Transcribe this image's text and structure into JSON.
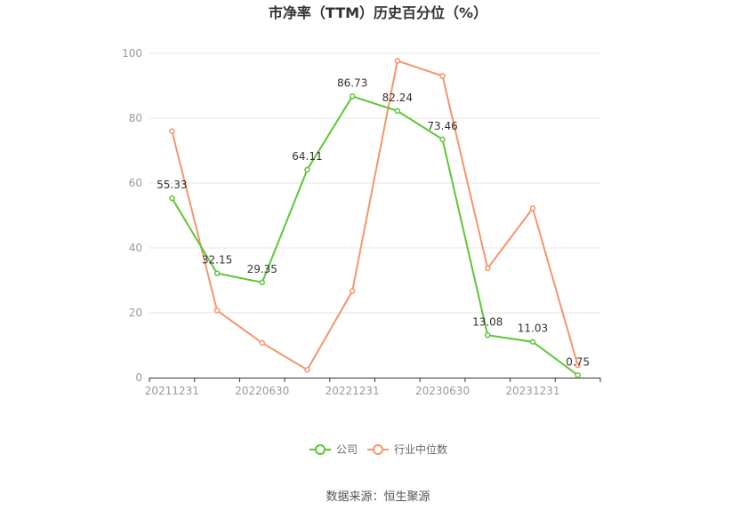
{
  "chart_data": {
    "type": "line",
    "title": "市净率（TTM）历史百分位（%）",
    "x": [
      "20211231",
      "20220331",
      "20220630",
      "20220930",
      "20221231",
      "20230331",
      "20230630",
      "20230930",
      "20231231",
      "20240331"
    ],
    "x_tick_labels": [
      "20211231",
      "20220630",
      "20221231",
      "20230630",
      "20231231"
    ],
    "y_ticks": [
      "0",
      "20",
      "40",
      "60",
      "80",
      "100"
    ],
    "ylim": [
      0,
      100
    ],
    "grid": true,
    "legend_position": "bottom-center",
    "series": [
      {
        "name": "公司",
        "color": "#5cc734",
        "values": [
          55.33,
          32.15,
          29.35,
          64.11,
          86.73,
          82.24,
          73.46,
          13.08,
          11.03,
          0.75
        ],
        "labels": [
          "55.33",
          "32.15",
          "29.35",
          "64.11",
          "86.73",
          "82.24",
          "73.46",
          "13.08",
          "11.03",
          "0.75"
        ]
      },
      {
        "name": "行业中位数",
        "color": "#f4956b",
        "values": [
          76,
          20.7,
          10.7,
          2.4,
          26.7,
          97.7,
          93,
          33.7,
          52.2,
          3.8
        ],
        "labels": []
      }
    ],
    "source": "数据来源：恒生聚源"
  }
}
